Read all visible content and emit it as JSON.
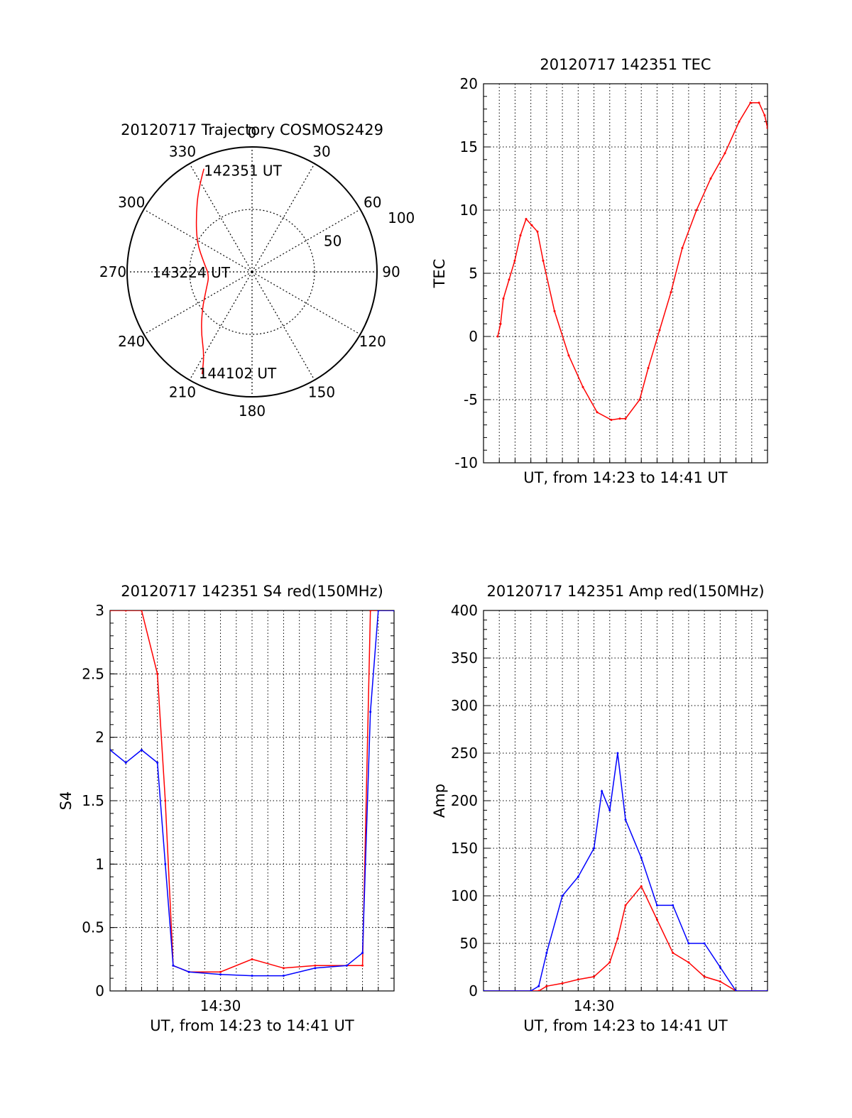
{
  "colors": {
    "primary": "#ff0000",
    "secondary": "#0000ff",
    "axis": "#000000",
    "grid": "#000000"
  },
  "chart_data": [
    {
      "type": "polar",
      "title": "20120717 Trajectory COSMOS2429",
      "azimuth_labels": [
        "0",
        "30",
        "60",
        "90",
        "120",
        "150",
        "180",
        "210",
        "240",
        "270",
        "300",
        "330"
      ],
      "radial_labels": [
        "50",
        "100"
      ],
      "rlim": [
        0,
        90
      ],
      "trajectory": {
        "elevation": [
          8,
          19,
          33,
          45,
          55,
          59,
          55,
          45,
          33,
          21,
          8
        ],
        "azimuth": [
          335,
          327,
          315,
          298,
          280,
          265,
          250,
          233,
          220,
          210,
          206
        ]
      },
      "annotations": [
        {
          "text": "142351 UT",
          "az": 335,
          "el": 8
        },
        {
          "text": "143224 UT",
          "az": 270,
          "el": 59
        },
        {
          "text": "144102 UT",
          "az": 206,
          "el": 8
        }
      ]
    },
    {
      "type": "line",
      "title": "20120717 142351 TEC",
      "xlabel": "UT, from 14:23 to 14:41 UT",
      "ylabel": "TEC",
      "xlim": [
        0,
        1
      ],
      "ylim": [
        -10,
        20
      ],
      "yticks": [
        "-10",
        "-5",
        "0",
        "5",
        "10",
        "15",
        "20"
      ],
      "grid": true,
      "series": [
        {
          "x": [
            0.05,
            0.06,
            0.07,
            0.09,
            0.11,
            0.13,
            0.15,
            0.17,
            0.19,
            0.21,
            0.25,
            0.3,
            0.35,
            0.4,
            0.45,
            0.48,
            0.5,
            0.55,
            0.58,
            0.62,
            0.66,
            0.7,
            0.75,
            0.8,
            0.85,
            0.9,
            0.94,
            0.97,
            0.99,
            1.0
          ],
          "y": [
            0,
            1,
            3,
            4.5,
            6,
            8,
            9.3,
            8.8,
            8.3,
            6,
            2,
            -1.5,
            -4,
            -6,
            -6.6,
            -6.5,
            -6.5,
            -5,
            -2.5,
            0.5,
            3.5,
            7,
            10,
            12.5,
            14.5,
            17,
            18.5,
            18.5,
            17.5,
            16.5
          ]
        }
      ]
    },
    {
      "type": "line",
      "title": "20120717 142351 S4 red(150MHz)",
      "xlabel": "UT, from 14:23 to 14:41 UT",
      "ylabel": "S4",
      "xlim": [
        "14:23",
        "14:41"
      ],
      "ylim": [
        0,
        3
      ],
      "yticks": [
        "0",
        "0.5",
        "1",
        "1.5",
        "2",
        "2.5",
        "3"
      ],
      "xticks": [
        "14:30"
      ],
      "grid": true,
      "series": [
        {
          "color": "red",
          "x": [
            "14:23:00",
            "14:24:00",
            "14:25:00",
            "14:26:00",
            "14:26:30",
            "14:27:00",
            "14:28:00",
            "14:30:00",
            "14:32:00",
            "14:34:00",
            "14:36:00",
            "14:38:00",
            "14:39:00",
            "14:39:30",
            "14:40:00",
            "14:41:00"
          ],
          "y": [
            3,
            3,
            3,
            2.5,
            1.5,
            0.2,
            0.15,
            0.15,
            0.25,
            0.18,
            0.2,
            0.2,
            0.2,
            3,
            3,
            3
          ]
        },
        {
          "color": "blue",
          "x": [
            "14:23:00",
            "14:24:00",
            "14:25:00",
            "14:26:00",
            "14:26:30",
            "14:27:00",
            "14:28:00",
            "14:30:00",
            "14:32:00",
            "14:34:00",
            "14:36:00",
            "14:38:00",
            "14:39:00",
            "14:39:30",
            "14:40:00",
            "14:41:00"
          ],
          "y": [
            1.9,
            1.8,
            1.9,
            1.8,
            1.0,
            0.2,
            0.15,
            0.13,
            0.12,
            0.12,
            0.18,
            0.2,
            0.3,
            2.2,
            3,
            3
          ]
        }
      ]
    },
    {
      "type": "line",
      "title": "20120717 142351 Amp red(150MHz)",
      "xlabel": "UT, from 14:23 to 14:41 UT",
      "ylabel": "Amp",
      "xlim": [
        "14:23",
        "14:41"
      ],
      "ylim": [
        0,
        400
      ],
      "yticks": [
        "0",
        "50",
        "100",
        "150",
        "200",
        "250",
        "300",
        "350",
        "400"
      ],
      "xticks": [
        "14:30"
      ],
      "grid": true,
      "series": [
        {
          "color": "red",
          "x": [
            "14:23:00",
            "14:26:30",
            "14:27:00",
            "14:28:00",
            "14:29:00",
            "14:30:00",
            "14:31:00",
            "14:31:30",
            "14:32:00",
            "14:33:00",
            "14:34:00",
            "14:35:00",
            "14:36:00",
            "14:37:00",
            "14:38:00",
            "14:39:00",
            "14:41:00"
          ],
          "y": [
            0,
            0,
            5,
            8,
            12,
            15,
            30,
            55,
            90,
            110,
            75,
            40,
            30,
            15,
            10,
            0,
            0
          ]
        },
        {
          "color": "blue",
          "x": [
            "14:23:00",
            "14:26:00",
            "14:26:30",
            "14:27:00",
            "14:28:00",
            "14:29:00",
            "14:30:00",
            "14:30:30",
            "14:31:00",
            "14:31:30",
            "14:32:00",
            "14:33:00",
            "14:34:00",
            "14:35:00",
            "14:36:00",
            "14:37:00",
            "14:38:00",
            "14:39:00",
            "14:41:00"
          ],
          "y": [
            0,
            0,
            5,
            40,
            100,
            120,
            150,
            210,
            190,
            250,
            180,
            140,
            90,
            90,
            50,
            50,
            25,
            0,
            0
          ]
        }
      ]
    }
  ]
}
